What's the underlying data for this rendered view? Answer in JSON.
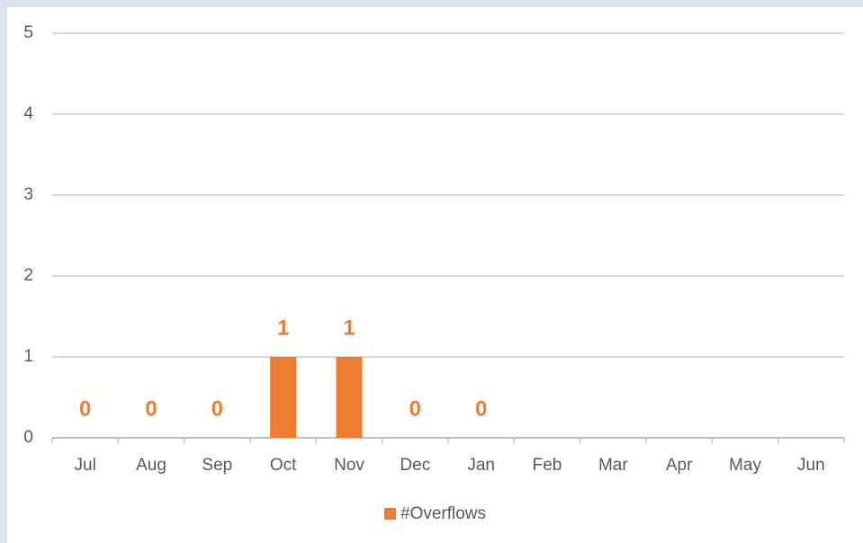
{
  "chart_data": {
    "type": "bar",
    "categories": [
      "Jul",
      "Aug",
      "Sep",
      "Oct",
      "Nov",
      "Dec",
      "Jan",
      "Feb",
      "Mar",
      "Apr",
      "May",
      "Jun"
    ],
    "series": [
      {
        "name": "#Overflows",
        "color": "#ed7d31",
        "values": [
          0,
          0,
          0,
          1,
          1,
          0,
          0,
          null,
          null,
          null,
          null,
          null
        ]
      }
    ],
    "ylim": [
      0,
      5
    ],
    "yticks": [
      0,
      1,
      2,
      3,
      4,
      5
    ],
    "grid": true,
    "legend": "bottom",
    "data_labels": true
  }
}
